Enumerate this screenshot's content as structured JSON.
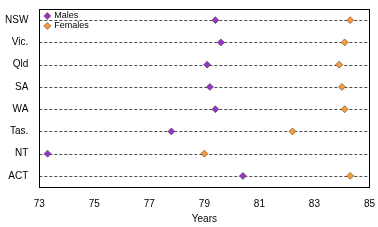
{
  "chart_data": {
    "type": "scatter",
    "categories": [
      "NSW",
      "Vic.",
      "Qld",
      "SA",
      "WA",
      "Tas.",
      "NT",
      "ACT"
    ],
    "series": [
      {
        "name": "Males",
        "color": "#9933cc",
        "marker": "diamond",
        "values": [
          79.4,
          79.6,
          79.1,
          79.2,
          79.4,
          77.8,
          73.3,
          80.4
        ]
      },
      {
        "name": "Females",
        "color": "#ff9933",
        "marker": "diamond",
        "values": [
          84.3,
          84.1,
          83.9,
          84.0,
          84.1,
          82.2,
          79.0,
          84.3
        ]
      }
    ],
    "xlabel": "Years",
    "xlim": [
      73,
      85
    ],
    "xticks": [
      73,
      75,
      77,
      79,
      81,
      83,
      85
    ],
    "grid": true,
    "legend": "upper left"
  }
}
